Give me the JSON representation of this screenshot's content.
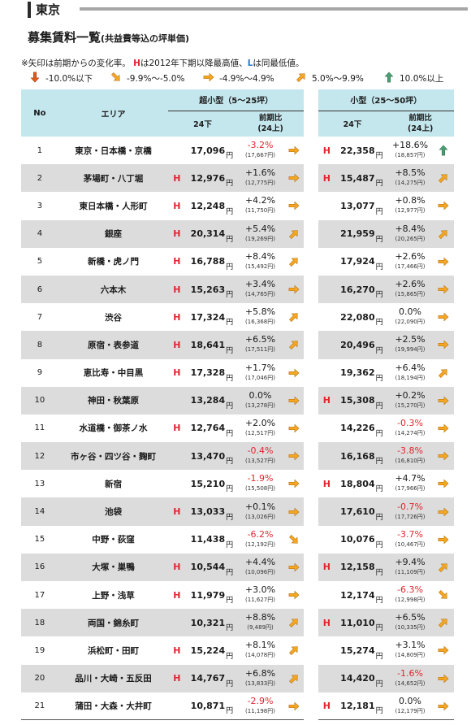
{
  "region_title": "東京",
  "main_title": "募集賃料一覧",
  "main_subtitle": "(共益費等込の坪単価)",
  "note": {
    "prefix": "※矢印は前期からの変化率。",
    "h_mark": "H",
    "h_text": "は2012年下期以降最高値、",
    "l_mark": "L",
    "l_text": "は同最低値。"
  },
  "legend": [
    {
      "icon": "arrow-down-icon",
      "label": "-10.0%以下"
    },
    {
      "icon": "arrow-down-right-icon",
      "label": "-9.9%～-5.0%"
    },
    {
      "icon": "arrow-right-icon",
      "label": "-4.9%～4.9%"
    },
    {
      "icon": "arrow-up-right-icon",
      "label": "5.0%～9.9%"
    },
    {
      "icon": "arrow-up-icon",
      "label": "10.0%以上"
    }
  ],
  "colors": {
    "header_bg": "#c4e6ed",
    "row_alt_bg": "#dcdcdc",
    "negative_red": "#e0262e",
    "low_blue": "#2a78c8",
    "arrow_orange": "#f5a623",
    "arrow_green": "#4a9f74"
  },
  "header": {
    "no": "No",
    "area": "エリア",
    "group_a": "超小型（5～25坪）",
    "group_b": "小型（25～50坪）",
    "period": "24下",
    "change_line1": "前期比",
    "change_line2": "(24上)"
  },
  "unit": "円",
  "rows": [
    {
      "no": "1",
      "area": "東京・日本橋・京橋",
      "a_h": "",
      "a_price": "17,096",
      "a_change": "-3.2%",
      "a_prev": "(17,667円)",
      "a_arrow": "arrow-right-icon",
      "b_h": "H",
      "b_price": "22,358",
      "b_change": "+18.6%",
      "b_prev": "(18,857円)",
      "b_arrow": "arrow-up-icon"
    },
    {
      "no": "2",
      "area": "茅場町・八丁堀",
      "a_h": "H",
      "a_price": "12,976",
      "a_change": "+1.6%",
      "a_prev": "(12,775円)",
      "a_arrow": "arrow-right-icon",
      "b_h": "H",
      "b_price": "15,487",
      "b_change": "+8.5%",
      "b_prev": "(14,275円)",
      "b_arrow": "arrow-up-right-icon"
    },
    {
      "no": "3",
      "area": "東日本橋・人形町",
      "a_h": "H",
      "a_price": "12,248",
      "a_change": "+4.2%",
      "a_prev": "(11,750円)",
      "a_arrow": "arrow-right-icon",
      "b_h": "",
      "b_price": "13,077",
      "b_change": "+0.8%",
      "b_prev": "(12,977円)",
      "b_arrow": "arrow-right-icon"
    },
    {
      "no": "4",
      "area": "銀座",
      "a_h": "H",
      "a_price": "20,314",
      "a_change": "+5.4%",
      "a_prev": "(19,269円)",
      "a_arrow": "arrow-up-right-icon",
      "b_h": "",
      "b_price": "21,959",
      "b_change": "+8.4%",
      "b_prev": "(20,265円)",
      "b_arrow": "arrow-up-right-icon"
    },
    {
      "no": "5",
      "area": "新橋・虎ノ門",
      "a_h": "H",
      "a_price": "16,788",
      "a_change": "+8.4%",
      "a_prev": "(15,492円)",
      "a_arrow": "arrow-up-right-icon",
      "b_h": "",
      "b_price": "17,924",
      "b_change": "+2.6%",
      "b_prev": "(17,466円)",
      "b_arrow": "arrow-right-icon"
    },
    {
      "no": "6",
      "area": "六本木",
      "a_h": "H",
      "a_price": "15,263",
      "a_change": "+3.4%",
      "a_prev": "(14,765円)",
      "a_arrow": "arrow-right-icon",
      "b_h": "",
      "b_price": "16,270",
      "b_change": "+2.6%",
      "b_prev": "(15,865円)",
      "b_arrow": "arrow-right-icon"
    },
    {
      "no": "7",
      "area": "渋谷",
      "a_h": "H",
      "a_price": "17,324",
      "a_change": "+5.8%",
      "a_prev": "(16,368円)",
      "a_arrow": "arrow-up-right-icon",
      "b_h": "",
      "b_price": "22,080",
      "b_change": "0.0%",
      "b_prev": "(22,090円)",
      "b_arrow": "arrow-right-icon"
    },
    {
      "no": "8",
      "area": "原宿・表参道",
      "a_h": "H",
      "a_price": "18,641",
      "a_change": "+6.5%",
      "a_prev": "(17,511円)",
      "a_arrow": "arrow-up-right-icon",
      "b_h": "",
      "b_price": "20,496",
      "b_change": "+2.5%",
      "b_prev": "(19,994円)",
      "b_arrow": "arrow-right-icon"
    },
    {
      "no": "9",
      "area": "恵比寿・中目黒",
      "a_h": "H",
      "a_price": "17,328",
      "a_change": "+1.7%",
      "a_prev": "(17,046円)",
      "a_arrow": "arrow-right-icon",
      "b_h": "",
      "b_price": "19,362",
      "b_change": "+6.4%",
      "b_prev": "(18,194円)",
      "b_arrow": "arrow-up-right-icon"
    },
    {
      "no": "10",
      "area": "神田・秋葉原",
      "a_h": "",
      "a_price": "13,284",
      "a_change": "0.0%",
      "a_prev": "(13,278円)",
      "a_arrow": "arrow-right-icon",
      "b_h": "H",
      "b_price": "15,308",
      "b_change": "+0.2%",
      "b_prev": "(15,270円)",
      "b_arrow": "arrow-right-icon"
    },
    {
      "no": "11",
      "area": "水道橋・御茶ノ水",
      "a_h": "H",
      "a_price": "12,764",
      "a_change": "+2.0%",
      "a_prev": "(12,517円)",
      "a_arrow": "arrow-right-icon",
      "b_h": "",
      "b_price": "14,226",
      "b_change": "-0.3%",
      "b_prev": "(14,274円)",
      "b_arrow": "arrow-right-icon"
    },
    {
      "no": "12",
      "area": "市ヶ谷・四ツ谷・麹町",
      "a_h": "",
      "a_price": "13,470",
      "a_change": "-0.4%",
      "a_prev": "(13,527円)",
      "a_arrow": "arrow-right-icon",
      "b_h": "",
      "b_price": "16,168",
      "b_change": "-3.8%",
      "b_prev": "(16,810円)",
      "b_arrow": "arrow-right-icon"
    },
    {
      "no": "13",
      "area": "新宿",
      "a_h": "",
      "a_price": "15,210",
      "a_change": "-1.9%",
      "a_prev": "(15,508円)",
      "a_arrow": "arrow-right-icon",
      "b_h": "H",
      "b_price": "18,804",
      "b_change": "+4.7%",
      "b_prev": "(17,966円)",
      "b_arrow": "arrow-right-icon"
    },
    {
      "no": "14",
      "area": "池袋",
      "a_h": "H",
      "a_price": "13,033",
      "a_change": "+0.1%",
      "a_prev": "(13,026円)",
      "a_arrow": "arrow-right-icon",
      "b_h": "",
      "b_price": "17,610",
      "b_change": "-0.7%",
      "b_prev": "(17,726円)",
      "b_arrow": "arrow-right-icon"
    },
    {
      "no": "15",
      "area": "中野・荻窪",
      "a_h": "",
      "a_price": "11,438",
      "a_change": "-6.2%",
      "a_prev": "(12,192円)",
      "a_arrow": "arrow-down-right-icon",
      "b_h": "",
      "b_price": "10,076",
      "b_change": "-3.7%",
      "b_prev": "(10,467円)",
      "b_arrow": "arrow-right-icon"
    },
    {
      "no": "16",
      "area": "大塚・巣鴨",
      "a_h": "H",
      "a_price": "10,544",
      "a_change": "+4.4%",
      "a_prev": "(10,096円)",
      "a_arrow": "arrow-right-icon",
      "b_h": "H",
      "b_price": "12,158",
      "b_change": "+9.4%",
      "b_prev": "(11,109円)",
      "b_arrow": "arrow-up-right-icon"
    },
    {
      "no": "17",
      "area": "上野・浅草",
      "a_h": "H",
      "a_price": "11,979",
      "a_change": "+3.0%",
      "a_prev": "(11,627円)",
      "a_arrow": "arrow-right-icon",
      "b_h": "",
      "b_price": "12,174",
      "b_change": "-6.3%",
      "b_prev": "(12,998円)",
      "b_arrow": "arrow-down-right-icon"
    },
    {
      "no": "18",
      "area": "両国・錦糸町",
      "a_h": "",
      "a_price": "10,321",
      "a_change": "+8.8%",
      "a_prev": "(9,489円)",
      "a_arrow": "arrow-up-right-icon",
      "b_h": "H",
      "b_price": "11,010",
      "b_change": "+6.5%",
      "b_prev": "(10,335円)",
      "b_arrow": "arrow-up-right-icon"
    },
    {
      "no": "19",
      "area": "浜松町・田町",
      "a_h": "H",
      "a_price": "15,224",
      "a_change": "+8.1%",
      "a_prev": "(14,078円)",
      "a_arrow": "arrow-up-right-icon",
      "b_h": "",
      "b_price": "15,274",
      "b_change": "+3.1%",
      "b_prev": "(14,809円)",
      "b_arrow": "arrow-right-icon"
    },
    {
      "no": "20",
      "area": "品川・大崎・五反田",
      "a_h": "H",
      "a_price": "14,767",
      "a_change": "+6.8%",
      "a_prev": "(13,833円)",
      "a_arrow": "arrow-up-right-icon",
      "b_h": "",
      "b_price": "14,420",
      "b_change": "-1.6%",
      "b_prev": "(14,652円)",
      "b_arrow": "arrow-right-icon"
    },
    {
      "no": "21",
      "area": "蒲田・大森・大井町",
      "a_h": "",
      "a_price": "10,871",
      "a_change": "-2.9%",
      "a_prev": "(11,198円)",
      "a_arrow": "arrow-right-icon",
      "b_h": "H",
      "b_price": "12,181",
      "b_change": "0.0%",
      "b_prev": "(12,179円)",
      "b_arrow": "arrow-right-icon"
    }
  ]
}
